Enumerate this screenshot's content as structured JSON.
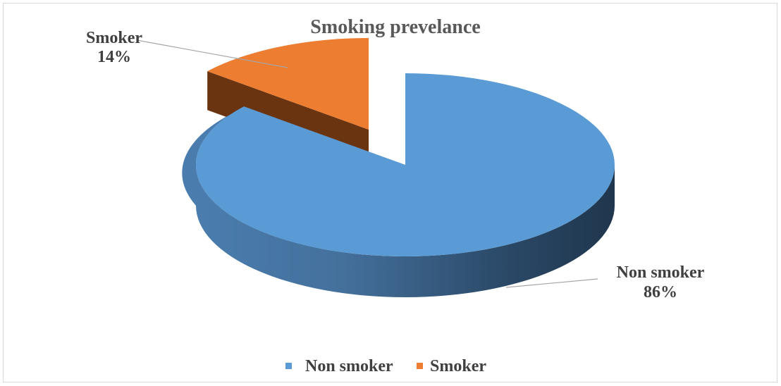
{
  "chart_data": {
    "type": "pie",
    "style": "3d-exploded",
    "title": "Smoking prevelance",
    "slices": [
      {
        "name": "Non smoker",
        "value": 86,
        "label": "86%",
        "color": "#5B9BD5",
        "side_color": "#2E4F6E"
      },
      {
        "name": "Smoker",
        "value": 14,
        "label": "14%",
        "color": "#ED7D31",
        "side_color": "#6B3410"
      }
    ],
    "legend": {
      "placement": "bottom",
      "items": [
        {
          "label": "Non smoker",
          "color": "#5B9BD5"
        },
        {
          "label": "Smoker",
          "color": "#ED7D31"
        }
      ]
    }
  }
}
